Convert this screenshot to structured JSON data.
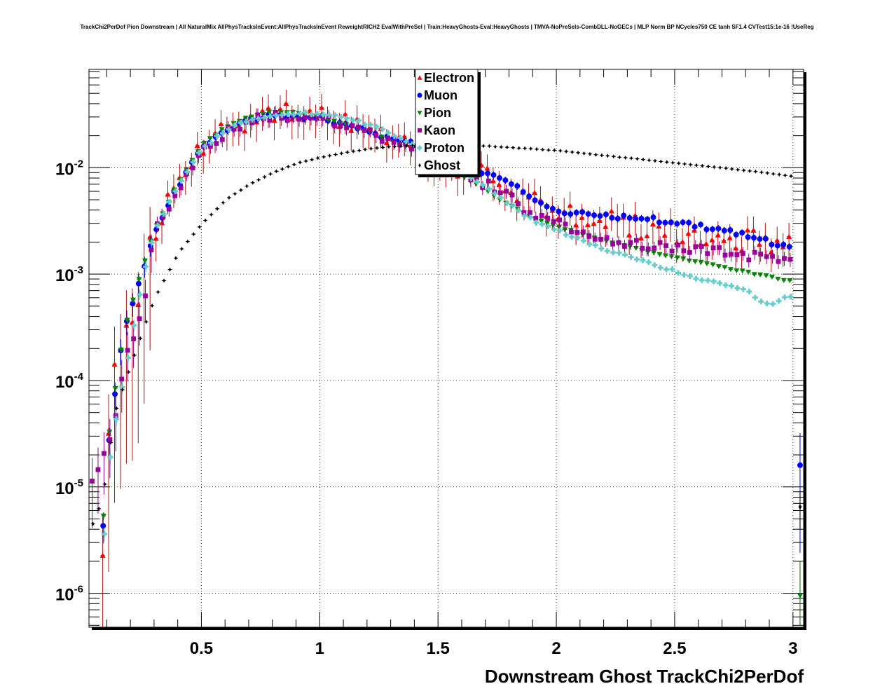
{
  "page": {
    "title": "TrackChi2PerDof Pion Downstream | All NaturalMix AllPhysTracksInEvent:AllPhysTracksInEvent ReweightRICH2 EvalWithPreSel | Train:HeavyGhosts-Eval:HeavyGhosts | TMVA-NoPreSels-CombDLL-NoGECs | MLP Norm BP NCycles750 CE tanh SF1.4 CVTest15:1e-16 !UseReg"
  },
  "chart_data": {
    "type": "scatter",
    "title": "TrackChi2PerDof Pion Downstream | All NaturalMix AllPhysTracksInEvent:AllPhysTracksInEvent ReweightRICH2 EvalWithPreSel | Train:HeavyGhosts-Eval:HeavyGhosts | TMVA-NoPreSels-CombDLL-NoGECs | MLP Norm BP NCycles750 CE tanh SF1.4 CVTest15:1e-16 !UseReg",
    "xlabel": "Downstream Ghost TrackChi2PerDof",
    "ylabel": "",
    "xlim": [
      0.025,
      3.045
    ],
    "ylim": [
      4.8e-07,
      0.084
    ],
    "yscale": "log",
    "grid": true,
    "legend_position": "top-center",
    "x_ticks": [
      0.5,
      1,
      1.5,
      2,
      2.5,
      3
    ],
    "x_tick_labels": [
      "0.5",
      "1",
      "1.5",
      "2",
      "2.5",
      "3"
    ],
    "y_ticks": [
      {
        "value": 1e-06,
        "base": "10",
        "exp": "-6"
      },
      {
        "value": 1e-05,
        "base": "10",
        "exp": "-5"
      },
      {
        "value": 0.0001,
        "base": "10",
        "exp": "-4"
      },
      {
        "value": 0.001,
        "base": "10",
        "exp": "-3"
      },
      {
        "value": 0.01,
        "base": "10",
        "exp": "-2"
      }
    ],
    "series": [
      {
        "name": "Electron",
        "color": "#ff0000",
        "marker": "triangle-up",
        "lineColor": "#b01010",
        "anchors": [
          [
            0.05,
            1e-07
          ],
          [
            0.1,
            8e-06
          ],
          [
            0.125,
            0.00016
          ],
          [
            0.2,
            0.0003
          ],
          [
            0.25,
            0.0008
          ],
          [
            0.3,
            0.0023
          ],
          [
            0.4,
            0.0068
          ],
          [
            0.5,
            0.015
          ],
          [
            0.6,
            0.0225
          ],
          [
            0.7,
            0.0285
          ],
          [
            0.8,
            0.0315
          ],
          [
            0.9,
            0.032
          ],
          [
            1.0,
            0.03
          ],
          [
            1.1,
            0.026
          ],
          [
            1.2,
            0.0225
          ],
          [
            1.3,
            0.019
          ],
          [
            1.4,
            0.016
          ],
          [
            1.5,
            0.0125
          ],
          [
            1.6,
            0.01
          ],
          [
            1.7,
            0.0085
          ],
          [
            1.8,
            0.0065
          ],
          [
            1.9,
            0.005
          ],
          [
            2.0,
            0.0036
          ],
          [
            2.2,
            0.0034
          ],
          [
            2.4,
            0.0026
          ],
          [
            2.6,
            0.0023
          ],
          [
            2.8,
            0.0021
          ],
          [
            3.0,
            0.002
          ]
        ],
        "errScale": 0.35
      },
      {
        "name": "Muon",
        "color": "#0000ff",
        "marker": "circle",
        "lineColor": "#0000cc",
        "anchors": [
          [
            0.05,
            1e-07
          ],
          [
            0.1,
            1.6e-05
          ],
          [
            0.125,
            5e-05
          ],
          [
            0.175,
            0.00028
          ],
          [
            0.25,
            0.001
          ],
          [
            0.3,
            0.0022
          ],
          [
            0.4,
            0.0065
          ],
          [
            0.5,
            0.0145
          ],
          [
            0.6,
            0.022
          ],
          [
            0.7,
            0.0275
          ],
          [
            0.8,
            0.0305
          ],
          [
            0.9,
            0.031
          ],
          [
            1.0,
            0.03
          ],
          [
            1.1,
            0.026
          ],
          [
            1.2,
            0.0225
          ],
          [
            1.3,
            0.019
          ],
          [
            1.4,
            0.0165
          ],
          [
            1.5,
            0.0135
          ],
          [
            1.6,
            0.011
          ],
          [
            1.7,
            0.009
          ],
          [
            1.8,
            0.0075
          ],
          [
            1.9,
            0.005
          ],
          [
            2.0,
            0.004
          ],
          [
            2.2,
            0.0036
          ],
          [
            2.4,
            0.0033
          ],
          [
            2.6,
            0.0028
          ],
          [
            2.8,
            0.0024
          ],
          [
            3.0,
            0.0017
          ]
        ],
        "errScale": 0.08
      },
      {
        "name": "Pion",
        "color": "#008800",
        "marker": "triangle-down",
        "lineColor": "#006600",
        "anchors": [
          [
            0.05,
            1e-07
          ],
          [
            0.1,
            2e-05
          ],
          [
            0.125,
            5.5e-05
          ],
          [
            0.175,
            0.0003
          ],
          [
            0.25,
            0.0011
          ],
          [
            0.3,
            0.0025
          ],
          [
            0.4,
            0.007
          ],
          [
            0.5,
            0.016
          ],
          [
            0.6,
            0.024
          ],
          [
            0.7,
            0.03
          ],
          [
            0.8,
            0.0335
          ],
          [
            0.9,
            0.033
          ],
          [
            1.0,
            0.03
          ],
          [
            1.1,
            0.026
          ],
          [
            1.2,
            0.022
          ],
          [
            1.3,
            0.018
          ],
          [
            1.4,
            0.0145
          ],
          [
            1.5,
            0.0115
          ],
          [
            1.6,
            0.0085
          ],
          [
            1.7,
            0.0062
          ],
          [
            1.8,
            0.0045
          ],
          [
            1.9,
            0.0034
          ],
          [
            2.0,
            0.0028
          ],
          [
            2.2,
            0.0021
          ],
          [
            2.4,
            0.0016
          ],
          [
            2.6,
            0.0013
          ],
          [
            2.8,
            0.00105
          ],
          [
            3.0,
            0.00085
          ]
        ],
        "errScale": 0.02
      },
      {
        "name": "Kaon",
        "color": "#990099",
        "marker": "square",
        "lineColor": "#880088",
        "anchors": [
          [
            0.04,
            1.2e-05
          ],
          [
            0.1,
            2.4e-05
          ],
          [
            0.125,
            3.5e-05
          ],
          [
            0.175,
            0.00015
          ],
          [
            0.25,
            0.00045
          ],
          [
            0.3,
            0.0024
          ],
          [
            0.4,
            0.0062
          ],
          [
            0.5,
            0.014
          ],
          [
            0.6,
            0.0215
          ],
          [
            0.7,
            0.0275
          ],
          [
            0.8,
            0.03
          ],
          [
            0.9,
            0.031
          ],
          [
            1.0,
            0.0295
          ],
          [
            1.1,
            0.0255
          ],
          [
            1.2,
            0.022
          ],
          [
            1.3,
            0.018
          ],
          [
            1.4,
            0.015
          ],
          [
            1.5,
            0.012
          ],
          [
            1.6,
            0.009
          ],
          [
            1.7,
            0.007
          ],
          [
            1.8,
            0.0055
          ],
          [
            1.9,
            0.0035
          ],
          [
            2.0,
            0.003
          ],
          [
            2.2,
            0.0021
          ],
          [
            2.4,
            0.0019
          ],
          [
            2.6,
            0.0017
          ],
          [
            2.8,
            0.0015
          ],
          [
            3.0,
            0.0013
          ]
        ],
        "errScale": 0.15
      },
      {
        "name": "Proton",
        "color": "#66cccc",
        "marker": "cross",
        "lineColor": "#44aaaa",
        "anchors": [
          [
            0.05,
            1e-07
          ],
          [
            0.1,
            1.2e-05
          ],
          [
            0.125,
            3e-05
          ],
          [
            0.175,
            0.00012
          ],
          [
            0.25,
            0.0009
          ],
          [
            0.3,
            0.0025
          ],
          [
            0.4,
            0.0068
          ],
          [
            0.5,
            0.015
          ],
          [
            0.6,
            0.0225
          ],
          [
            0.7,
            0.0285
          ],
          [
            0.8,
            0.031
          ],
          [
            0.9,
            0.032
          ],
          [
            1.0,
            0.0325
          ],
          [
            1.1,
            0.03
          ],
          [
            1.2,
            0.0255
          ],
          [
            1.3,
            0.021
          ],
          [
            1.4,
            0.0165
          ],
          [
            1.5,
            0.0125
          ],
          [
            1.6,
            0.009
          ],
          [
            1.7,
            0.0065
          ],
          [
            1.8,
            0.0045
          ],
          [
            1.9,
            0.0032
          ],
          [
            2.0,
            0.0026
          ],
          [
            2.2,
            0.0017
          ],
          [
            2.4,
            0.00125
          ],
          [
            2.6,
            0.0009
          ],
          [
            2.8,
            0.0007
          ],
          [
            2.9,
            0.0005
          ],
          [
            3.0,
            0.00065
          ]
        ],
        "errScale": 0.04
      },
      {
        "name": "Ghost",
        "color": "#000000",
        "marker": "diamond",
        "lineColor": "#000000",
        "anchors": [
          [
            0.04,
            4.5e-06
          ],
          [
            0.075,
            7.5e-06
          ],
          [
            0.1,
            1.5e-05
          ],
          [
            0.125,
            4.5e-05
          ],
          [
            0.175,
            0.0001
          ],
          [
            0.25,
            0.0003
          ],
          [
            0.3,
            0.0006
          ],
          [
            0.4,
            0.0016
          ],
          [
            0.5,
            0.003
          ],
          [
            0.6,
            0.005
          ],
          [
            0.7,
            0.007
          ],
          [
            0.8,
            0.009
          ],
          [
            0.9,
            0.011
          ],
          [
            1.0,
            0.0125
          ],
          [
            1.1,
            0.0138
          ],
          [
            1.2,
            0.015
          ],
          [
            1.3,
            0.0158
          ],
          [
            1.4,
            0.0162
          ],
          [
            1.5,
            0.0162
          ],
          [
            1.6,
            0.0162
          ],
          [
            1.7,
            0.016
          ],
          [
            1.8,
            0.0155
          ],
          [
            2.0,
            0.0145
          ],
          [
            2.2,
            0.013
          ],
          [
            2.4,
            0.0117
          ],
          [
            2.6,
            0.0105
          ],
          [
            2.8,
            0.0094
          ],
          [
            3.0,
            0.0083
          ]
        ],
        "errScale": 0.005
      }
    ],
    "extras": [
      {
        "series": "Muon",
        "x": 3.03,
        "y": 1.6e-05,
        "err": [
          2.4e-06,
          3.2e-05
        ]
      },
      {
        "series": "Pion",
        "x": 3.03,
        "y": 9.5e-07,
        "err": [
          5e-07,
          2e-06
        ]
      },
      {
        "series": "Ghost",
        "x": 3.03,
        "y": 6.5e-06,
        "err": [
          4e-06,
          9e-06
        ]
      }
    ]
  }
}
